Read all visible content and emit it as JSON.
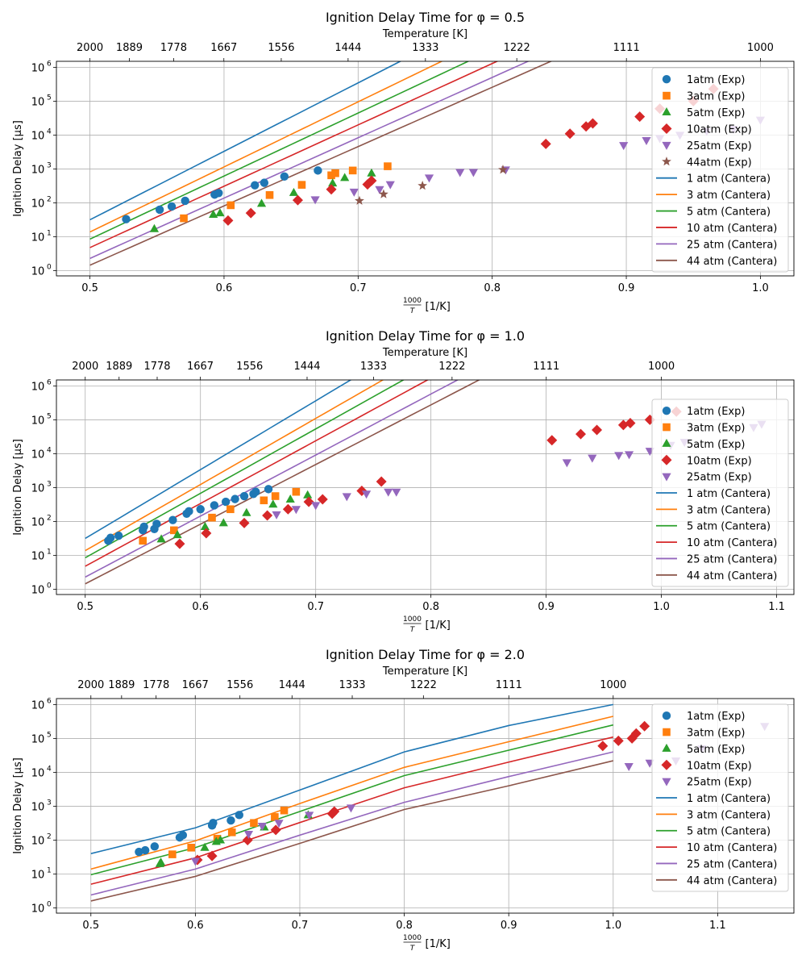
{
  "figure": {
    "top_axis_label": "Temperature [K]"
  },
  "chart_data": [
    {
      "type": "scatter",
      "title": "Ignition Delay Time for φ = 0.5",
      "xlabel_num": "1000",
      "xlabel_den": "T",
      "xlabel_unit": "[1/K]",
      "ylabel": "Ignition Delay [µs]",
      "top_xlabel": "Temperature [K]",
      "yscale": "log",
      "xlim": [
        0.475,
        1.025
      ],
      "ylim": [
        0.7,
        1500000
      ],
      "xticks": [
        0.5,
        0.6,
        0.7,
        0.8,
        0.9,
        1.0
      ],
      "xticklabels": [
        "0.5",
        "0.6",
        "0.7",
        "0.8",
        "0.9",
        "1.0"
      ],
      "top_ticks": [
        2000,
        1889,
        1778,
        1667,
        1556,
        1444,
        1333,
        1222,
        1111,
        1000
      ],
      "yticks_exp": [
        0,
        1,
        2,
        3,
        4,
        5,
        6
      ],
      "grid": true,
      "legend_position": "right",
      "series_exp": [
        {
          "name": "1atm (Exp)",
          "marker": "circle",
          "color": "#1f77b4",
          "x": [
            0.527,
            0.552,
            0.561,
            0.571,
            0.593,
            0.596,
            0.623,
            0.63,
            0.645,
            0.67
          ],
          "y": [
            33,
            63,
            78,
            115,
            175,
            195,
            330,
            390,
            600,
            900
          ]
        },
        {
          "name": "3atm (Exp)",
          "marker": "square",
          "color": "#ff7f0e",
          "x": [
            0.57,
            0.605,
            0.634,
            0.658,
            0.68,
            0.683,
            0.696,
            0.722
          ],
          "y": [
            35,
            85,
            170,
            340,
            650,
            750,
            900,
            1200
          ]
        },
        {
          "name": "5atm (Exp)",
          "marker": "triangle-up",
          "color": "#2ca02c",
          "x": [
            0.548,
            0.592,
            0.597,
            0.628,
            0.652,
            0.681,
            0.69,
            0.71
          ],
          "y": [
            17,
            45,
            50,
            95,
            200,
            380,
            550,
            750
          ]
        },
        {
          "name": "10atm (Exp)",
          "marker": "diamond",
          "color": "#d62728",
          "x": [
            0.603,
            0.62,
            0.655,
            0.68,
            0.707,
            0.71,
            0.84,
            0.858,
            0.87,
            0.875,
            0.91,
            0.925,
            0.95,
            0.965
          ],
          "y": [
            30,
            50,
            120,
            250,
            350,
            450,
            5500,
            11000,
            18000,
            22000,
            35000,
            60000,
            100000,
            230000
          ]
        },
        {
          "name": "25atm (Exp)",
          "marker": "triangle-down",
          "color": "#9467bd",
          "x": [
            0.668,
            0.697,
            0.716,
            0.724,
            0.753,
            0.776,
            0.786,
            0.81,
            0.898,
            0.915,
            0.925,
            0.94,
            0.96,
            0.98,
            1.0
          ],
          "y": [
            125,
            210,
            250,
            350,
            550,
            800,
            800,
            950,
            5000,
            7000,
            8000,
            10000,
            13000,
            15000,
            28000
          ]
        },
        {
          "name": "44atm (Exp)",
          "marker": "star",
          "color": "#8c564b",
          "x": [
            0.701,
            0.719,
            0.748,
            0.808
          ],
          "y": [
            115,
            180,
            320,
            950
          ]
        }
      ],
      "series_model": [
        {
          "name": "1 atm (Cantera)",
          "color": "#1f77b4",
          "A": 1.5,
          "B": 20.2
        },
        {
          "name": "3 atm (Cantera)",
          "color": "#ff7f0e",
          "A": 1.14,
          "B": 19.2
        },
        {
          "name": "5 atm (Cantera)",
          "color": "#2ca02c",
          "A": 0.93,
          "B": 18.6
        },
        {
          "name": "10 atm (Cantera)",
          "color": "#d62728",
          "A": 0.68,
          "B": 18.1
        },
        {
          "name": "25 atm (Cantera)",
          "color": "#9467bd",
          "A": 0.36,
          "B": 17.8
        },
        {
          "name": "44 atm (Cantera)",
          "color": "#8c564b",
          "A": 0.16,
          "B": 17.5
        }
      ]
    },
    {
      "type": "scatter",
      "title": "Ignition Delay Time for φ = 1.0",
      "xlabel_num": "1000",
      "xlabel_den": "T",
      "xlabel_unit": "[1/K]",
      "ylabel": "Ignition Delay [µs]",
      "top_xlabel": "Temperature [K]",
      "yscale": "log",
      "xlim": [
        0.475,
        1.115
      ],
      "ylim": [
        0.7,
        1500000
      ],
      "xticks": [
        0.5,
        0.6,
        0.7,
        0.8,
        0.9,
        1.0,
        1.1
      ],
      "xticklabels": [
        "0.5",
        "0.6",
        "0.7",
        "0.8",
        "0.9",
        "1.0",
        "1.1"
      ],
      "top_ticks": [
        2000,
        1889,
        1778,
        1667,
        1556,
        1444,
        1333,
        1222,
        1111,
        1000
      ],
      "yticks_exp": [
        0,
        1,
        2,
        3,
        4,
        5,
        6
      ],
      "grid": true,
      "legend_position": "right",
      "series_exp": [
        {
          "name": "1atm (Exp)",
          "marker": "circle",
          "color": "#1f77b4",
          "x": [
            0.52,
            0.522,
            0.529,
            0.55,
            0.551,
            0.56,
            0.562,
            0.576,
            0.588,
            0.59,
            0.6,
            0.612,
            0.622,
            0.63,
            0.638,
            0.646,
            0.648,
            0.659
          ],
          "y": [
            27,
            33,
            38,
            55,
            70,
            60,
            85,
            110,
            170,
            200,
            230,
            300,
            380,
            460,
            560,
            650,
            750,
            900
          ]
        },
        {
          "name": "3atm (Exp)",
          "marker": "square",
          "color": "#ff7f0e",
          "x": [
            0.55,
            0.577,
            0.61,
            0.626,
            0.655,
            0.665,
            0.683
          ],
          "y": [
            27,
            55,
            130,
            230,
            420,
            560,
            750
          ]
        },
        {
          "name": "5atm (Exp)",
          "marker": "triangle-up",
          "color": "#2ca02c",
          "x": [
            0.566,
            0.58,
            0.604,
            0.62,
            0.64,
            0.663,
            0.678,
            0.693
          ],
          "y": [
            30,
            40,
            70,
            90,
            180,
            320,
            450,
            600
          ]
        },
        {
          "name": "10atm (Exp)",
          "marker": "diamond",
          "color": "#d62728",
          "x": [
            0.582,
            0.605,
            0.638,
            0.658,
            0.676,
            0.694,
            0.706,
            0.74,
            0.757,
            0.905,
            0.93,
            0.944,
            0.967,
            0.973,
            0.99,
            1.013
          ],
          "y": [
            22,
            45,
            90,
            150,
            230,
            380,
            450,
            800,
            1500,
            25000,
            38000,
            50000,
            70000,
            80000,
            100000,
            175000
          ]
        },
        {
          "name": "25atm (Exp)",
          "marker": "triangle-down",
          "color": "#9467bd",
          "x": [
            0.666,
            0.683,
            0.7,
            0.727,
            0.744,
            0.763,
            0.77,
            0.918,
            0.94,
            0.963,
            0.972,
            0.99,
            1.008,
            1.02,
            1.08,
            1.087
          ],
          "y": [
            160,
            230,
            300,
            550,
            650,
            750,
            750,
            5500,
            7500,
            9000,
            9500,
            12000,
            18000,
            22000,
            60000,
            75000
          ]
        }
      ],
      "series_model": [
        {
          "name": "1 atm (Cantera)",
          "color": "#1f77b4",
          "A": 1.5,
          "B": 20.3
        },
        {
          "name": "3 atm (Cantera)",
          "color": "#ff7f0e",
          "A": 1.14,
          "B": 19.5
        },
        {
          "name": "5 atm (Cantera)",
          "color": "#2ca02c",
          "A": 0.93,
          "B": 19.0
        },
        {
          "name": "10 atm (Cantera)",
          "color": "#d62728",
          "A": 0.68,
          "B": 18.5
        },
        {
          "name": "25 atm (Cantera)",
          "color": "#9467bd",
          "A": 0.36,
          "B": 18.0
        },
        {
          "name": "44 atm (Cantera)",
          "color": "#8c564b",
          "A": 0.16,
          "B": 17.6
        }
      ]
    },
    {
      "type": "scatter",
      "title": "Ignition Delay Time for φ = 2.0",
      "xlabel_num": "1000",
      "xlabel_den": "T",
      "xlabel_unit": "[1/K]",
      "ylabel": "Ignition Delay [µs]",
      "top_xlabel": "Temperature [K]",
      "yscale": "log",
      "xlim": [
        0.467,
        1.173
      ],
      "ylim": [
        0.7,
        1500000
      ],
      "xticks": [
        0.5,
        0.6,
        0.7,
        0.8,
        0.9,
        1.0,
        1.1
      ],
      "xticklabels": [
        "0.5",
        "0.6",
        "0.7",
        "0.8",
        "0.9",
        "1.0",
        "1.1"
      ],
      "top_ticks": [
        2000,
        1889,
        1778,
        1667,
        1556,
        1444,
        1333,
        1222,
        1111,
        1000
      ],
      "yticks_exp": [
        0,
        1,
        2,
        3,
        4,
        5,
        6
      ],
      "grid": true,
      "legend_position": "right",
      "series_exp": [
        {
          "name": "1atm (Exp)",
          "marker": "circle",
          "color": "#1f77b4",
          "x": [
            0.546,
            0.552,
            0.561,
            0.585,
            0.588,
            0.616,
            0.617,
            0.634,
            0.642
          ],
          "y": [
            45,
            50,
            65,
            120,
            140,
            270,
            320,
            380,
            550
          ]
        },
        {
          "name": "3atm (Exp)",
          "marker": "square",
          "color": "#ff7f0e",
          "x": [
            0.578,
            0.596,
            0.621,
            0.635,
            0.656,
            0.676,
            0.685
          ],
          "y": [
            38,
            60,
            110,
            170,
            320,
            480,
            750
          ]
        },
        {
          "name": "5atm (Exp)",
          "marker": "triangle-up",
          "color": "#2ca02c",
          "x": [
            0.566,
            0.567,
            0.609,
            0.62,
            0.624,
            0.666,
            0.708
          ],
          "y": [
            20,
            22,
            60,
            90,
            100,
            240,
            550
          ]
        },
        {
          "name": "10atm (Exp)",
          "marker": "diamond",
          "color": "#d62728",
          "x": [
            0.602,
            0.616,
            0.65,
            0.677,
            0.731,
            0.733,
            0.99,
            1.005,
            1.018,
            1.022,
            1.03
          ],
          "y": [
            26,
            34,
            100,
            200,
            600,
            700,
            60000,
            85000,
            100000,
            140000,
            230000
          ]
        },
        {
          "name": "25atm (Exp)",
          "marker": "triangle-down",
          "color": "#9467bd",
          "x": [
            0.6,
            0.651,
            0.664,
            0.68,
            0.709,
            0.749,
            1.015,
            1.035,
            1.06,
            1.085,
            1.145
          ],
          "y": [
            24,
            150,
            260,
            320,
            550,
            900,
            15000,
            19000,
            22000,
            50000,
            230000
          ]
        }
      ],
      "series_model": [
        {
          "name": "1 atm (Cantera)",
          "color": "#1f77b4",
          "xs": [
            0.5,
            0.6,
            0.7,
            0.8,
            0.9,
            1.0
          ],
          "ys": [
            40,
            230,
            3000,
            40000,
            240000,
            1000000
          ]
        },
        {
          "name": "3 atm (Cantera)",
          "color": "#ff7f0e",
          "xs": [
            0.5,
            0.6,
            0.7,
            0.8,
            0.9,
            1.0
          ],
          "ys": [
            14,
            95,
            1200,
            14000,
            80000,
            450000
          ]
        },
        {
          "name": "5 atm (Cantera)",
          "color": "#2ca02c",
          "xs": [
            0.5,
            0.6,
            0.7,
            0.8,
            0.9,
            1.0
          ],
          "ys": [
            9.5,
            60,
            700,
            8000,
            45000,
            250000
          ]
        },
        {
          "name": "10 atm (Cantera)",
          "color": "#d62728",
          "xs": [
            0.5,
            0.6,
            0.7,
            0.8,
            0.9,
            1.0
          ],
          "ys": [
            5,
            30,
            330,
            3500,
            20000,
            110000
          ]
        },
        {
          "name": "25 atm (Cantera)",
          "color": "#9467bd",
          "xs": [
            0.5,
            0.6,
            0.7,
            0.8,
            0.9,
            1.0
          ],
          "ys": [
            2.4,
            14,
            140,
            1300,
            7500,
            40000
          ]
        },
        {
          "name": "44 atm (Cantera)",
          "color": "#8c564b",
          "xs": [
            0.5,
            0.6,
            0.7,
            0.8,
            0.9,
            1.0
          ],
          "ys": [
            1.6,
            8.5,
            80,
            800,
            4000,
            22000
          ]
        }
      ]
    }
  ]
}
